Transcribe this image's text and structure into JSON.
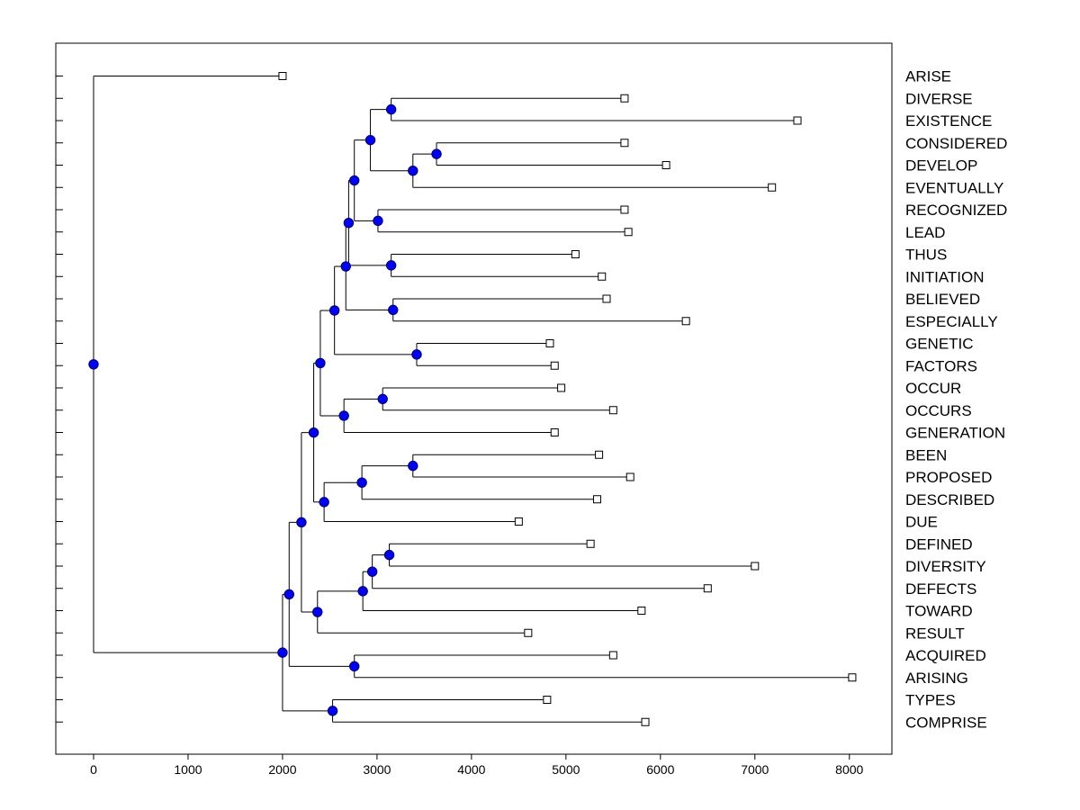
{
  "chart_data": {
    "type": "dendrogram",
    "title": "",
    "xlabel": "",
    "ylabel": "",
    "xlim": [
      -400,
      8450
    ],
    "x_ticks": [
      0,
      1000,
      2000,
      3000,
      4000,
      5000,
      6000,
      7000,
      8000
    ],
    "x_tick_labels": [
      "0",
      "1000",
      "2000",
      "3000",
      "4000",
      "5000",
      "6000",
      "7000",
      "8000"
    ],
    "grid": false,
    "colors": {
      "node_fill": "#0000ff",
      "node_stroke": "#000066",
      "line": "#000000",
      "leaf_fill": "#ffffff"
    },
    "leaves": [
      {
        "name": "ARISE",
        "x": 2000
      },
      {
        "name": "DIVERSE",
        "x": 5620
      },
      {
        "name": "EXISTENCE",
        "x": 7450
      },
      {
        "name": "CONSIDERED",
        "x": 5620
      },
      {
        "name": "DEVELOP",
        "x": 6060
      },
      {
        "name": "EVENTUALLY",
        "x": 7180
      },
      {
        "name": "RECOGNIZED",
        "x": 5620
      },
      {
        "name": "LEAD",
        "x": 5660
      },
      {
        "name": "THUS",
        "x": 5100
      },
      {
        "name": "INITIATION",
        "x": 5380
      },
      {
        "name": "BELIEVED",
        "x": 5430
      },
      {
        "name": "ESPECIALLY",
        "x": 6270
      },
      {
        "name": "GENETIC",
        "x": 4830
      },
      {
        "name": "FACTORS",
        "x": 4880
      },
      {
        "name": "OCCUR",
        "x": 4950
      },
      {
        "name": "OCCURS",
        "x": 5500
      },
      {
        "name": "GENERATION",
        "x": 4880
      },
      {
        "name": "BEEN",
        "x": 5350
      },
      {
        "name": "PROPOSED",
        "x": 5680
      },
      {
        "name": "DESCRIBED",
        "x": 5330
      },
      {
        "name": "DUE",
        "x": 4500
      },
      {
        "name": "DEFINED",
        "x": 5260
      },
      {
        "name": "DIVERSITY",
        "x": 7000
      },
      {
        "name": "DEFECTS",
        "x": 6500
      },
      {
        "name": "TOWARD",
        "x": 5800
      },
      {
        "name": "RESULT",
        "x": 4600
      },
      {
        "name": "ACQUIRED",
        "x": 5500
      },
      {
        "name": "ARISING",
        "x": 8030
      },
      {
        "name": "TYPES",
        "x": 4800
      },
      {
        "name": "COMPRISE",
        "x": 5840
      }
    ],
    "merges": [
      {
        "id": "n1",
        "x": 3150,
        "children": [
          "L1",
          "L2"
        ]
      },
      {
        "id": "n2",
        "x": 3630,
        "children": [
          "L3",
          "L4"
        ]
      },
      {
        "id": "n3",
        "x": 3380,
        "children": [
          "n2",
          "L5"
        ]
      },
      {
        "id": "n4",
        "x": 2930,
        "children": [
          "n1",
          "n3"
        ]
      },
      {
        "id": "n5",
        "x": 3010,
        "children": [
          "L6",
          "L7"
        ]
      },
      {
        "id": "n6",
        "x": 2760,
        "children": [
          "n4",
          "n5"
        ]
      },
      {
        "id": "n7",
        "x": 3150,
        "children": [
          "L8",
          "L9"
        ]
      },
      {
        "id": "n8",
        "x": 2700,
        "children": [
          "n6",
          "n7"
        ]
      },
      {
        "id": "n9",
        "x": 3170,
        "children": [
          "L10",
          "L11"
        ]
      },
      {
        "id": "n10",
        "x": 2670,
        "children": [
          "n8",
          "n9"
        ]
      },
      {
        "id": "n11",
        "x": 3420,
        "children": [
          "L12",
          "L13"
        ]
      },
      {
        "id": "n12",
        "x": 2550,
        "children": [
          "n10",
          "n11"
        ]
      },
      {
        "id": "n13",
        "x": 3060,
        "children": [
          "L14",
          "L15"
        ]
      },
      {
        "id": "n14",
        "x": 2650,
        "children": [
          "n13",
          "L16"
        ]
      },
      {
        "id": "n15",
        "x": 2400,
        "children": [
          "n12",
          "n14"
        ]
      },
      {
        "id": "n16",
        "x": 3380,
        "children": [
          "L17",
          "L18"
        ]
      },
      {
        "id": "n17",
        "x": 2840,
        "children": [
          "n16",
          "L19"
        ]
      },
      {
        "id": "n18",
        "x": 2440,
        "children": [
          "n17",
          "L20"
        ]
      },
      {
        "id": "n19",
        "x": 2330,
        "children": [
          "n15",
          "n18"
        ]
      },
      {
        "id": "n20",
        "x": 3130,
        "children": [
          "L21",
          "L22"
        ]
      },
      {
        "id": "n21",
        "x": 2950,
        "children": [
          "n20",
          "L23"
        ]
      },
      {
        "id": "n22",
        "x": 2850,
        "children": [
          "n21",
          "L24"
        ]
      },
      {
        "id": "n23",
        "x": 2370,
        "children": [
          "n22",
          "L25"
        ]
      },
      {
        "id": "n24",
        "x": 2200,
        "children": [
          "n19",
          "n23"
        ]
      },
      {
        "id": "n25",
        "x": 2760,
        "children": [
          "L26",
          "L27"
        ]
      },
      {
        "id": "n26",
        "x": 2070,
        "children": [
          "n24",
          "n25"
        ]
      },
      {
        "id": "n27",
        "x": 2530,
        "children": [
          "L28",
          "L29"
        ]
      },
      {
        "id": "n28",
        "x": 2000,
        "children": [
          "n26",
          "n27"
        ]
      },
      {
        "id": "n29",
        "x": 0,
        "children": [
          "L0",
          "n28"
        ]
      }
    ]
  }
}
